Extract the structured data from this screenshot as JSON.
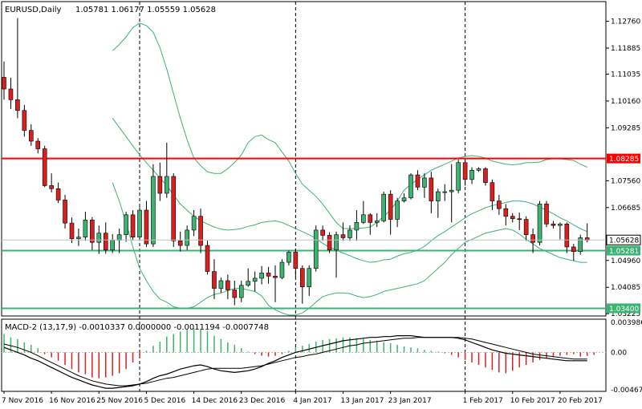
{
  "header": {
    "title": "EURUSD,Daily",
    "ohlc": "1.05781 1.06177 1.05559 1.05628"
  },
  "macd": {
    "label": "MACD-2 (13,17,9) -0.0010337 0.0000000 -0.0011194 -0.0007748",
    "axis_ticks": [
      "0.003986",
      "0.00",
      "-0.004671"
    ]
  },
  "price_axis_ticks": [
    "1.12760",
    "1.11885",
    "1.11035",
    "1.10160",
    "1.09285",
    "1.07560",
    "1.06685",
    "1.04960",
    "1.04085",
    "1.03225"
  ],
  "date_labels": [
    "7 Nov 2016",
    "16 Nov 2016",
    "25 Nov 2016",
    "5 Dec 2016",
    "14 Dec 2016",
    "23 Dec 2016",
    "4 Jan 2017",
    "13 Jan 2017",
    "23 Jan 2017",
    "1 Feb 2017",
    "10 Feb 2017",
    "20 Feb 2017"
  ],
  "horizontal_levels": [
    {
      "price": 1.08285,
      "label": "1.08285",
      "color": "#ff0000"
    },
    {
      "price": 1.05281,
      "label": "1.05281",
      "color": "#3cb371"
    },
    {
      "price": 1.034,
      "label": "1.03400",
      "color": "#3cb371"
    }
  ],
  "current_price": {
    "price": 1.05628,
    "label": "1.05628"
  },
  "colors": {
    "bull": "#3cb371",
    "bear": "#d82020",
    "band": "#3cb371",
    "macd_line": "#000000",
    "signal": "#000000"
  },
  "chart_data": {
    "type": "candlestick",
    "symbol": "EURUSD",
    "timeframe": "Daily",
    "ylim": [
      1.0315,
      1.134
    ],
    "candles": [
      [
        1.1093,
        1.1145,
        1.102,
        1.1055
      ],
      [
        1.1055,
        1.1092,
        1.099,
        1.102
      ],
      [
        1.102,
        1.1286,
        1.096,
        1.0985
      ],
      [
        1.0985,
        1.1003,
        1.09,
        1.092
      ],
      [
        1.092,
        1.094,
        1.087,
        1.0885
      ],
      [
        1.0885,
        1.0895,
        1.0845,
        1.086
      ],
      [
        1.086,
        1.087,
        1.0735,
        1.074
      ],
      [
        1.074,
        1.078,
        1.0718,
        1.073
      ],
      [
        1.073,
        1.075,
        1.0683,
        1.0693
      ],
      [
        1.0693,
        1.071,
        1.06,
        1.0618
      ],
      [
        1.0618,
        1.0636,
        1.0553,
        1.0567
      ],
      [
        1.0567,
        1.06,
        1.0543,
        1.0572
      ],
      [
        1.0572,
        1.0655,
        1.056,
        1.0628
      ],
      [
        1.0628,
        1.0637,
        1.053,
        1.0555
      ],
      [
        1.0555,
        1.061,
        1.0517,
        1.0585
      ],
      [
        1.0585,
        1.062,
        1.0518,
        1.053
      ],
      [
        1.053,
        1.0582,
        1.052,
        1.0562
      ],
      [
        1.0562,
        1.06,
        1.052,
        1.058
      ],
      [
        1.058,
        1.0655,
        1.0557,
        1.0645
      ],
      [
        1.0645,
        1.066,
        1.0561,
        1.0572
      ],
      [
        1.0572,
        1.067,
        1.056,
        1.066
      ],
      [
        1.066,
        1.069,
        1.054,
        1.055
      ],
      [
        1.055,
        1.081,
        1.054,
        1.077
      ],
      [
        1.077,
        1.0815,
        1.069,
        1.0715
      ],
      [
        1.0715,
        1.088,
        1.07,
        1.077
      ],
      [
        1.077,
        1.078,
        1.054,
        1.056
      ],
      [
        1.056,
        1.059,
        1.0525,
        1.0545
      ],
      [
        1.0545,
        1.061,
        1.053,
        1.0595
      ],
      [
        1.0595,
        1.066,
        1.0575,
        1.064
      ],
      [
        1.064,
        1.0665,
        1.052,
        1.0545
      ],
      [
        1.0545,
        1.056,
        1.045,
        1.046
      ],
      [
        1.046,
        1.05,
        1.037,
        1.0405
      ],
      [
        1.0405,
        1.044,
        1.039,
        1.043
      ],
      [
        1.043,
        1.045,
        1.037,
        1.04
      ],
      [
        1.04,
        1.043,
        1.035,
        1.0375
      ],
      [
        1.0375,
        1.043,
        1.036,
        1.0415
      ],
      [
        1.0415,
        1.047,
        1.041,
        1.0428
      ],
      [
        1.0428,
        1.046,
        1.0395,
        1.0438
      ],
      [
        1.0438,
        1.0478,
        1.0418,
        1.0455
      ],
      [
        1.0455,
        1.0475,
        1.042,
        1.0445
      ],
      [
        1.0445,
        1.048,
        1.036,
        1.044
      ],
      [
        1.044,
        1.05,
        1.0435,
        1.049
      ],
      [
        1.049,
        1.0528,
        1.048,
        1.0523
      ],
      [
        1.0523,
        1.0535,
        1.044,
        1.047
      ],
      [
        1.047,
        1.048,
        1.0355,
        1.041
      ],
      [
        1.041,
        1.048,
        1.038,
        1.047
      ],
      [
        1.047,
        1.061,
        1.046,
        1.0595
      ],
      [
        1.0595,
        1.061,
        1.056,
        1.0578
      ],
      [
        1.0578,
        1.0588,
        1.052,
        1.053
      ],
      [
        1.053,
        1.059,
        1.044,
        1.058
      ],
      [
        1.058,
        1.062,
        1.056,
        1.057
      ],
      [
        1.057,
        1.061,
        1.056,
        1.0595
      ],
      [
        1.0595,
        1.066,
        1.056,
        1.062
      ],
      [
        1.062,
        1.069,
        1.0615,
        1.0645
      ],
      [
        1.0645,
        1.065,
        1.058,
        1.062
      ],
      [
        1.062,
        1.065,
        1.0605,
        1.0625
      ],
      [
        1.0625,
        1.072,
        1.062,
        1.0712
      ],
      [
        1.0712,
        1.0725,
        1.058,
        1.063
      ],
      [
        1.063,
        1.07,
        1.0605,
        1.069
      ],
      [
        1.069,
        1.0715,
        1.0685,
        1.07
      ],
      [
        1.07,
        1.078,
        1.0695,
        1.0775
      ],
      [
        1.0775,
        1.079,
        1.0725,
        1.0735
      ],
      [
        1.0735,
        1.078,
        1.07,
        1.0765
      ],
      [
        1.0765,
        1.0785,
        1.065,
        1.069
      ],
      [
        1.069,
        1.073,
        1.0635,
        1.072
      ],
      [
        1.072,
        1.0745,
        1.069,
        1.072
      ],
      [
        1.072,
        1.081,
        1.062,
        1.0725
      ],
      [
        1.0725,
        1.0825,
        1.0715,
        1.0815
      ],
      [
        1.0815,
        1.0825,
        1.074,
        1.076
      ],
      [
        1.076,
        1.08,
        1.0745,
        1.079
      ],
      [
        1.079,
        1.08,
        1.0785,
        1.0795
      ],
      [
        1.0795,
        1.08,
        1.074,
        1.075
      ],
      [
        1.075,
        1.076,
        1.066,
        1.069
      ],
      [
        1.069,
        1.071,
        1.0645,
        1.0665
      ],
      [
        1.0665,
        1.068,
        1.061,
        1.064
      ],
      [
        1.064,
        1.065,
        1.062,
        1.0632
      ],
      [
        1.0632,
        1.0652,
        1.0595,
        1.063
      ],
      [
        1.063,
        1.064,
        1.056,
        1.058
      ],
      [
        1.058,
        1.06,
        1.052,
        1.0555
      ],
      [
        1.0555,
        1.069,
        1.0545,
        1.068
      ],
      [
        1.068,
        1.069,
        1.0605,
        1.0615
      ],
      [
        1.0615,
        1.0625,
        1.06,
        1.061
      ],
      [
        1.061,
        1.062,
        1.0565,
        1.0615
      ],
      [
        1.0615,
        1.062,
        1.052,
        1.054
      ],
      [
        1.054,
        1.055,
        1.0495,
        1.0525
      ],
      [
        1.0525,
        1.058,
        1.0515,
        1.057
      ],
      [
        1.057,
        1.0617,
        1.0555,
        1.0562
      ]
    ],
    "bollinger": {
      "upper": [
        1.118,
        1.12,
        1.1225,
        1.1255,
        1.127,
        1.1262,
        1.124,
        1.119,
        1.112,
        1.104,
        1.096,
        1.089,
        1.083,
        1.0805,
        1.0785,
        1.078,
        1.078,
        1.0795,
        1.0815,
        1.084,
        1.088,
        1.09,
        1.0905,
        1.089,
        1.088,
        1.085,
        1.082,
        1.078,
        1.0745,
        1.0725,
        1.0705,
        1.068,
        1.065,
        1.062,
        1.06,
        1.06,
        1.06,
        1.0602,
        1.0605,
        1.062,
        1.064,
        1.066,
        1.069,
        1.0725,
        1.0745,
        1.076,
        1.0775,
        1.079,
        1.08,
        1.081,
        1.082,
        1.083,
        1.0835,
        1.0838,
        1.0835,
        1.083,
        1.082,
        1.0815,
        1.081,
        1.0808,
        1.081,
        1.0815,
        1.0815,
        1.0817,
        1.0825,
        1.0828,
        1.0828,
        1.0825,
        1.0822,
        1.081,
        1.08
      ],
      "middle": [
        1.096,
        1.093,
        1.09,
        1.087,
        1.084,
        1.0815,
        1.079,
        1.0765,
        1.074,
        1.071,
        1.068,
        1.066,
        1.064,
        1.0625,
        1.0615,
        1.0605,
        1.0598,
        1.0595,
        1.0597,
        1.06,
        1.0607,
        1.0612,
        1.062,
        1.0623,
        1.0625,
        1.062,
        1.061,
        1.06,
        1.059,
        1.058,
        1.0568,
        1.0552,
        1.054,
        1.053,
        1.052,
        1.0512,
        1.0502,
        1.0495,
        1.049,
        1.0492,
        1.0498,
        1.05,
        1.051,
        1.0518,
        1.0522,
        1.053,
        1.0542,
        1.056,
        1.0577,
        1.059,
        1.0605,
        1.062,
        1.0635,
        1.0648,
        1.0658,
        1.0668,
        1.0675,
        1.068,
        1.0685,
        1.069,
        1.069,
        1.0687,
        1.068,
        1.067,
        1.066,
        1.0648,
        1.0635,
        1.0625,
        1.0612,
        1.06,
        1.059
      ],
      "lower": [
        1.075,
        1.069,
        1.062,
        1.054,
        1.047,
        1.043,
        1.0395,
        1.037,
        1.036,
        1.0345,
        1.034,
        1.034,
        1.0345,
        1.036,
        1.0375,
        1.0385,
        1.039,
        1.0398,
        1.0405,
        1.0405,
        1.04,
        1.0395,
        1.038,
        1.035,
        1.0335,
        1.0325,
        1.0318,
        1.0318,
        1.0325,
        1.034,
        1.036,
        1.0378,
        1.0385,
        1.039,
        1.039,
        1.0388,
        1.038,
        1.0375,
        1.0378,
        1.0385,
        1.0395,
        1.04,
        1.0405,
        1.041,
        1.0415,
        1.042,
        1.043,
        1.045,
        1.047,
        1.049,
        1.0515,
        1.0535,
        1.0555,
        1.0565,
        1.0575,
        1.0585,
        1.059,
        1.0595,
        1.06,
        1.0595,
        1.0582,
        1.0565,
        1.055,
        1.0535,
        1.0525,
        1.0515,
        1.0505,
        1.05,
        1.0495,
        1.049,
        1.049
      ]
    },
    "macd_histogram": [
      0.0022,
      0.0018,
      0.0016,
      0.0012,
      0.0009,
      0.0005,
      -0.0002,
      -0.0006,
      -0.001,
      -0.0015,
      -0.002,
      -0.0024,
      -0.0026,
      -0.003,
      -0.0031,
      -0.003,
      -0.0028,
      -0.0025,
      -0.002,
      -0.0012,
      -0.0006,
      0.0002,
      0.0008,
      0.0013,
      0.0019,
      0.0022,
      0.0025,
      0.0027,
      0.0029,
      0.0028,
      0.0026,
      0.002,
      0.0016,
      0.0012,
      0.0009,
      0.0005,
      0.0001,
      -0.0002,
      -0.0004,
      -0.0005,
      -0.0004,
      -0.0002,
      0.0002,
      0.0006,
      0.0008,
      0.001,
      0.0013,
      0.0015,
      0.0016,
      0.0017,
      0.0018,
      0.0018,
      0.0017,
      0.0016,
      0.0015,
      0.0014,
      0.0012,
      0.0011,
      0.0009,
      0.0007,
      0.0006,
      0.0005,
      0.0003,
      0.0002,
      0.0001,
      -0.0001,
      -0.0003,
      -0.0006,
      -0.0009,
      -0.0012,
      -0.0015,
      -0.0018,
      -0.0021,
      -0.0024,
      -0.0025,
      -0.0022,
      -0.0018,
      -0.0015,
      -0.0012,
      -0.0009,
      -0.0007,
      -0.0006,
      -0.0004,
      -0.0003,
      -0.0002,
      -0.0005,
      -0.0004,
      -0.0003
    ],
    "macd_line": [
      0.0006,
      0.0003,
      0.0,
      -0.0003,
      -0.0007,
      -0.001,
      -0.0014,
      -0.0018,
      -0.0022,
      -0.0026,
      -0.003,
      -0.0033,
      -0.0036,
      -0.0039,
      -0.0041,
      -0.0043,
      -0.0043,
      -0.0042,
      -0.0041,
      -0.004,
      -0.0038,
      -0.0035,
      -0.0031,
      -0.0028,
      -0.0026,
      -0.0023,
      -0.002,
      -0.0018,
      -0.0016,
      -0.0015,
      -0.0017,
      -0.002,
      -0.0022,
      -0.0023,
      -0.0024,
      -0.0023,
      -0.0022,
      -0.002,
      -0.0017,
      -0.0013,
      -0.001,
      -0.0006,
      -0.0003,
      0.0,
      0.0002,
      0.0004,
      0.0006,
      0.0008,
      0.001,
      0.0012,
      0.0014,
      0.0015,
      0.0016,
      0.0017,
      0.0018,
      0.0018,
      0.0019,
      0.0019,
      0.002,
      0.002,
      0.002,
      0.0019,
      0.0018,
      0.0018,
      0.0018,
      0.0018,
      0.0018,
      0.0017,
      0.0015,
      0.0012,
      0.0009,
      0.0006,
      0.0003,
      0.0001,
      -0.0001,
      -0.0002,
      -0.0003,
      -0.0004,
      -0.0005,
      -0.0006,
      -0.0007,
      -0.0008,
      -0.0009,
      -0.001,
      -0.001,
      -0.001,
      -0.001
    ],
    "signal_line": [
      0.001,
      0.0008,
      0.0006,
      0.0003,
      0.0,
      -0.0004,
      -0.0008,
      -0.0012,
      -0.0016,
      -0.002,
      -0.0024,
      -0.0028,
      -0.0031,
      -0.0034,
      -0.0036,
      -0.0038,
      -0.0039,
      -0.004,
      -0.004,
      -0.0039,
      -0.0038,
      -0.0037,
      -0.0035,
      -0.0033,
      -0.0031,
      -0.003,
      -0.0028,
      -0.0026,
      -0.0024,
      -0.0022,
      -0.002,
      -0.0019,
      -0.0019,
      -0.0019,
      -0.0019,
      -0.0019,
      -0.0018,
      -0.0017,
      -0.0016,
      -0.0014,
      -0.0012,
      -0.001,
      -0.0008,
      -0.0006,
      -0.0005,
      -0.0003,
      -0.0002,
      0.0,
      0.0002,
      0.0004,
      0.0006,
      0.0008,
      0.0009,
      0.0011,
      0.0012,
      0.0013,
      0.0014,
      0.0015,
      0.0016,
      0.0017,
      0.0017,
      0.0018,
      0.0018,
      0.0018,
      0.0018,
      0.0018,
      0.0018,
      0.0018,
      0.0017,
      0.0016,
      0.0014,
      0.0012,
      0.001,
      0.0008,
      0.0006,
      0.0004,
      0.0002,
      0.0,
      -0.0002,
      -0.0003,
      -0.0004,
      -0.0005,
      -0.0006,
      -0.0007,
      -0.0008,
      -0.0008,
      -0.0008
    ],
    "macd_ylim": [
      -0.004671,
      0.003986
    ]
  }
}
